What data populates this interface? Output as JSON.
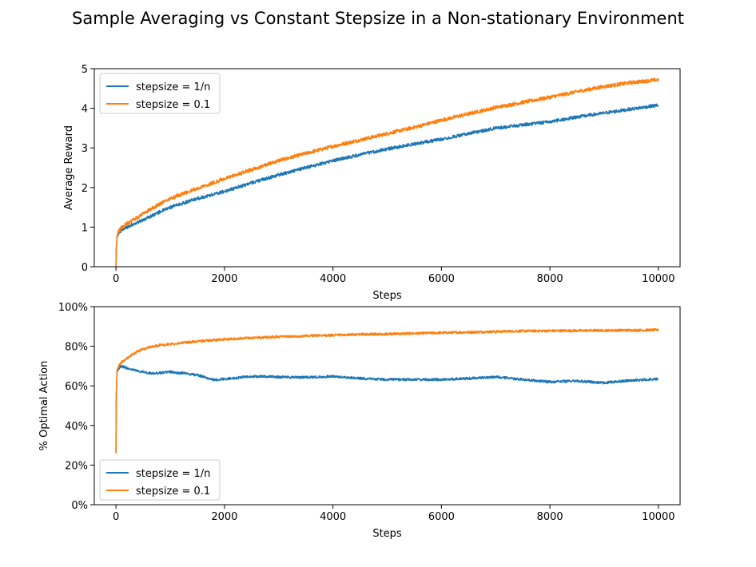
{
  "figure": {
    "title": "Sample Averaging vs Constant Stepsize in a Non-stationary Environment"
  },
  "chart_data": [
    {
      "type": "line",
      "xlabel": "Steps",
      "ylabel": "Average Reward",
      "xlim": [
        -400,
        10400
      ],
      "ylim": [
        0,
        5
      ],
      "xticks": [
        0,
        2000,
        4000,
        6000,
        8000,
        10000
      ],
      "xtick_labels": [
        "0",
        "2000",
        "4000",
        "6000",
        "8000",
        "10000"
      ],
      "yticks": [
        0,
        1,
        2,
        3,
        4,
        5
      ],
      "ytick_labels": [
        "0",
        "1",
        "2",
        "3",
        "4",
        "5"
      ],
      "legend_position": "top-left",
      "grid": false,
      "series": [
        {
          "name": "stepsize = 1/n",
          "color": "#1f77b4",
          "noise": 0.04,
          "x": [
            0,
            5,
            20,
            50,
            100,
            200,
            400,
            600,
            800,
            1000,
            1500,
            2000,
            2500,
            3000,
            3500,
            4000,
            4500,
            5000,
            5500,
            6000,
            6500,
            7000,
            7500,
            8000,
            8500,
            9000,
            9500,
            10000
          ],
          "y": [
            0.0,
            0.45,
            0.75,
            0.85,
            0.92,
            1.0,
            1.12,
            1.25,
            1.38,
            1.5,
            1.72,
            1.9,
            2.12,
            2.32,
            2.5,
            2.68,
            2.83,
            2.97,
            3.1,
            3.22,
            3.36,
            3.5,
            3.58,
            3.66,
            3.78,
            3.88,
            3.98,
            4.08
          ]
        },
        {
          "name": "stepsize = 0.1",
          "color": "#ff7f0e",
          "noise": 0.045,
          "x": [
            0,
            5,
            20,
            50,
            100,
            200,
            400,
            600,
            800,
            1000,
            1500,
            2000,
            2500,
            3000,
            3500,
            4000,
            4500,
            5000,
            5500,
            6000,
            6500,
            7000,
            7500,
            8000,
            8500,
            9000,
            9500,
            10000
          ],
          "y": [
            0.0,
            0.45,
            0.78,
            0.9,
            0.98,
            1.08,
            1.25,
            1.42,
            1.58,
            1.72,
            1.98,
            2.22,
            2.45,
            2.68,
            2.86,
            3.04,
            3.2,
            3.36,
            3.52,
            3.7,
            3.86,
            4.02,
            4.15,
            4.28,
            4.42,
            4.55,
            4.65,
            4.72
          ]
        }
      ]
    },
    {
      "type": "line",
      "xlabel": "Steps",
      "ylabel": "% Optimal Action",
      "xlim": [
        -400,
        10400
      ],
      "ylim": [
        0,
        1
      ],
      "xticks": [
        0,
        2000,
        4000,
        6000,
        8000,
        10000
      ],
      "xtick_labels": [
        "0",
        "2000",
        "4000",
        "6000",
        "8000",
        "10000"
      ],
      "yticks": [
        0,
        0.2,
        0.4,
        0.6,
        0.8,
        1.0
      ],
      "ytick_labels": [
        "0%",
        "20%",
        "40%",
        "60%",
        "80%",
        "100%"
      ],
      "legend_position": "bottom-left",
      "grid": false,
      "series": [
        {
          "name": "stepsize = 1/n",
          "color": "#1f77b4",
          "noise": 0.006,
          "x": [
            0,
            5,
            20,
            50,
            100,
            200,
            400,
            600,
            800,
            1000,
            1200,
            1500,
            1800,
            2000,
            2500,
            3000,
            3500,
            4000,
            4500,
            5000,
            5500,
            6000,
            6500,
            7000,
            7500,
            8000,
            8500,
            9000,
            9500,
            10000
          ],
          "y": [
            0.26,
            0.55,
            0.67,
            0.69,
            0.7,
            0.69,
            0.675,
            0.665,
            0.665,
            0.67,
            0.665,
            0.655,
            0.63,
            0.635,
            0.648,
            0.645,
            0.643,
            0.648,
            0.638,
            0.632,
            0.632,
            0.632,
            0.638,
            0.645,
            0.632,
            0.62,
            0.625,
            0.615,
            0.628,
            0.635
          ]
        },
        {
          "name": "stepsize = 0.1",
          "color": "#ff7f0e",
          "noise": 0.006,
          "x": [
            0,
            5,
            20,
            50,
            100,
            200,
            400,
            600,
            800,
            1000,
            1500,
            2000,
            2500,
            3000,
            3500,
            4000,
            4500,
            5000,
            5500,
            6000,
            6500,
            7000,
            7500,
            8000,
            8500,
            9000,
            9500,
            10000
          ],
          "y": [
            0.26,
            0.55,
            0.68,
            0.7,
            0.72,
            0.74,
            0.775,
            0.795,
            0.805,
            0.81,
            0.825,
            0.835,
            0.842,
            0.848,
            0.852,
            0.856,
            0.86,
            0.862,
            0.865,
            0.868,
            0.871,
            0.874,
            0.877,
            0.878,
            0.879,
            0.88,
            0.881,
            0.882
          ]
        }
      ]
    }
  ]
}
